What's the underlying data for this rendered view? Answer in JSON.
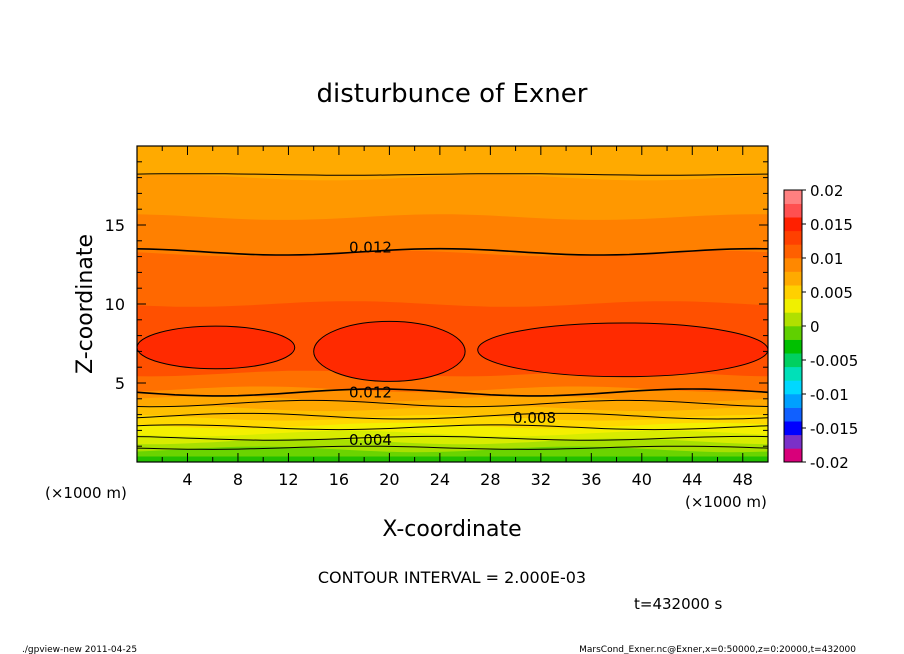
{
  "chart_data": {
    "type": "contour",
    "title": "disturbunce of Exner",
    "xlabel": "X-coordinate",
    "ylabel": "Z-coordinate",
    "x_unit": "(×1000 m)",
    "x_unit_right": "(×1000 m)",
    "y_unit": "(×1000 m)",
    "xlim": [
      0,
      50
    ],
    "ylim": [
      0,
      20
    ],
    "x_ticks": [
      "4",
      "8",
      "12",
      "16",
      "20",
      "24",
      "28",
      "32",
      "36",
      "40",
      "44",
      "48"
    ],
    "y_ticks": [
      "5",
      "10",
      "15"
    ],
    "contour_interval_text": "CONTOUR INTERVAL = 2.000E-03",
    "time_text": "t=432000 s",
    "contour_labels": [
      {
        "text": "0.012",
        "x": 18.5,
        "z": 13.4
      },
      {
        "text": "0.012",
        "x": 18.5,
        "z": 4.2
      },
      {
        "text": "0.008",
        "x": 31.5,
        "z": 2.6
      },
      {
        "text": "0.004",
        "x": 18.5,
        "z": 1.2
      }
    ],
    "colorbar": {
      "labels": [
        "0.02",
        "0.015",
        "0.01",
        "0.005",
        "0",
        "-0.005",
        "-0.01",
        "-0.015",
        "-0.02"
      ],
      "colors": [
        "#d8007a",
        "#7a30c8",
        "#0000ff",
        "#1060ff",
        "#00a0ff",
        "#00d8ff",
        "#00e0b8",
        "#00d060",
        "#00c000",
        "#60d000",
        "#b0e000",
        "#f0f000",
        "#ffd000",
        "#ffaa00",
        "#ff8800",
        "#ff6000",
        "#ff4000",
        "#ff2000",
        "#ff5050",
        "#ff8080"
      ]
    },
    "bands": [
      {
        "z": 0.35,
        "color": "#22c000"
      },
      {
        "z": 0.8,
        "color": "#6ad400"
      },
      {
        "z": 1.3,
        "color": "#a8e000"
      },
      {
        "z": 1.8,
        "color": "#d8ec00"
      },
      {
        "z": 2.3,
        "color": "#f4f000"
      },
      {
        "z": 2.8,
        "color": "#ffd800"
      },
      {
        "z": 3.4,
        "color": "#ffc000"
      },
      {
        "z": 4.0,
        "color": "#ffa800"
      },
      {
        "z": 4.6,
        "color": "#ff9000"
      },
      {
        "z": 5.6,
        "color": "#ff7000"
      },
      {
        "z": 10.0,
        "color": "#ff5000"
      },
      {
        "z": 13.2,
        "color": "#ff6800"
      },
      {
        "z": 15.5,
        "color": "#ff8000"
      },
      {
        "z": 18.0,
        "color": "#ff9800"
      },
      {
        "z": 20.0,
        "color": "#ffaa00"
      }
    ],
    "cells": [
      {
        "x0": 0,
        "x1": 12.5,
        "z0": 5.9,
        "z1": 8.6
      },
      {
        "x0": 14,
        "x1": 26,
        "z0": 5.1,
        "z1": 8.9
      },
      {
        "x0": 27,
        "x1": 50,
        "z0": 5.4,
        "z1": 8.8
      }
    ]
  },
  "footer": {
    "left": "./gpview-new   2011-04-25",
    "right": "MarsCond_Exner.nc@Exner,x=0:50000,z=0:20000,t=432000"
  }
}
